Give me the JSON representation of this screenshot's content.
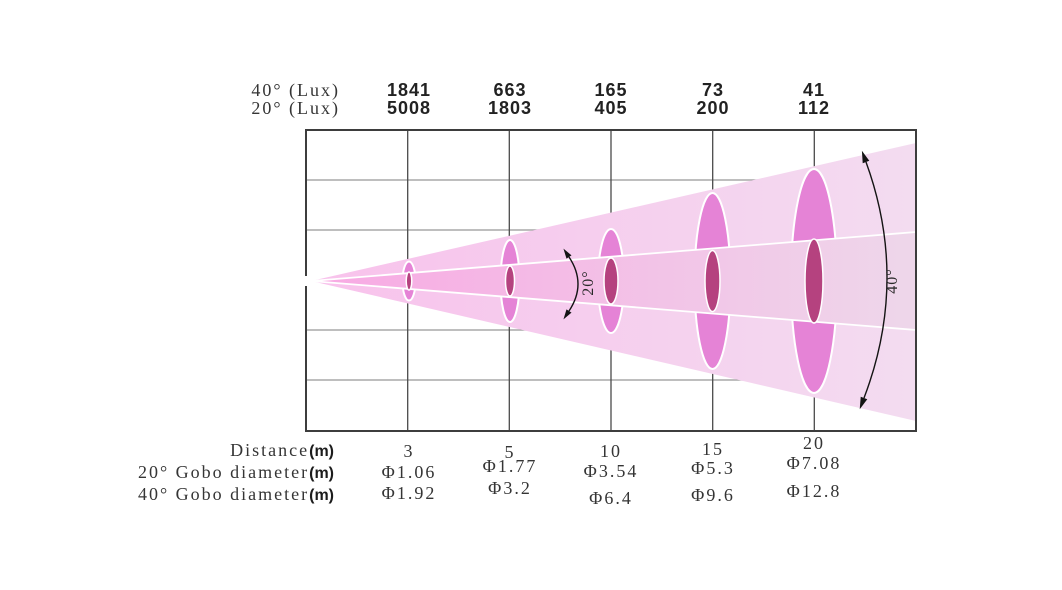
{
  "header": {
    "rows": [
      {
        "label": "40° (Lux)",
        "values": [
          "1841",
          "663",
          "165",
          "73",
          "41"
        ]
      },
      {
        "label": "20° (Lux)",
        "values": [
          "5008",
          "1803",
          "405",
          "200",
          "112"
        ]
      }
    ]
  },
  "footer": {
    "rows": [
      {
        "label": "Distance",
        "unit": "(m)",
        "values": [
          "3",
          "5",
          "10",
          "15",
          "20"
        ]
      },
      {
        "label": "20° Gobo diameter",
        "unit": "(m)",
        "values": [
          "Φ1.06",
          "Φ1.77",
          "Φ3.54",
          "Φ5.3",
          "Φ7.08"
        ]
      },
      {
        "label": "40° Gobo diameter",
        "unit": "(m)",
        "values": [
          "Φ1.92",
          "Φ3.2",
          "Φ6.4",
          "Φ9.6",
          "Φ12.8"
        ]
      }
    ]
  },
  "annotations": {
    "beam20": "20°",
    "beam40": "40°"
  },
  "colors": {
    "background": "#ffffff",
    "grid_border": "#3d3d3d",
    "grid_col_line": "#4a4a4a",
    "grid_row_line": "#989898",
    "beam40_near": "#f8c2ec",
    "beam40_far": "#f3dcf0",
    "beam20_near": "#f8a9e3",
    "beam20_far": "#eed7ea",
    "gobo40_fill": "#e583d6",
    "gobo20_fill": "#b5427f",
    "arc_stroke": "#141414"
  },
  "chart_data": {
    "type": "table",
    "x_label": "Distance(m)",
    "x": [
      3,
      5,
      10,
      15,
      20
    ],
    "series": [
      {
        "name": "40°",
        "lux": [
          1841,
          663,
          165,
          73,
          41
        ],
        "gobo_diameter_m": [
          1.92,
          3.2,
          6.4,
          9.6,
          12.8
        ]
      },
      {
        "name": "20°",
        "lux": [
          5008,
          1803,
          405,
          200,
          112
        ],
        "gobo_diameter_m": [
          1.06,
          1.77,
          3.54,
          5.3,
          7.08
        ]
      }
    ],
    "beam_angles_deg": [
      20,
      40
    ]
  }
}
